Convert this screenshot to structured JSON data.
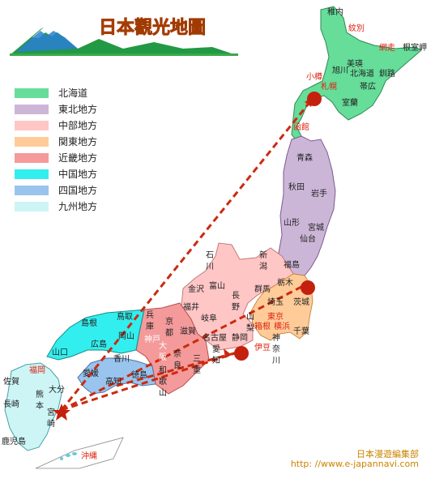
{
  "title": "日本觀光地圖",
  "legend": [
    {
      "label": "北海道",
      "color": "#66dd99"
    },
    {
      "label": "東北地方",
      "color": "#ccb6d8"
    },
    {
      "label": "中部地方",
      "color": "#ffc6c6"
    },
    {
      "label": "関東地方",
      "color": "#ffcc99"
    },
    {
      "label": "近畿地方",
      "color": "#f49a9a"
    },
    {
      "label": "中国地方",
      "color": "#33eeee"
    },
    {
      "label": "四国地方",
      "color": "#99c4ee"
    },
    {
      "label": "九州地方",
      "color": "#cdf5f5"
    }
  ],
  "labels": {
    "wakkanai": "稚内",
    "abashiri": "紋別",
    "shiretoko": "網走",
    "nemuro": "根室岬",
    "asahikawa": "旭川",
    "bihoro": "美瑛",
    "hokkaido": "北海道",
    "kushiro": "釧路",
    "otaru": "小樽",
    "sapporo": "札幌",
    "obihiro": "帯広",
    "muroran": "室蘭",
    "hakodate": "函館",
    "aomori": "青森",
    "akita": "秋田",
    "iwate": "岩手",
    "yamagata": "山形",
    "miyagi": "宮城",
    "sendai": "仙台",
    "niigata1": "新",
    "niigata2": "潟",
    "fukushima": "福島",
    "ishikawa1": "石",
    "ishikawa2": "川",
    "kanazawa": "金沢",
    "toyama": "富山",
    "fukui": "福井",
    "nagano1": "長",
    "nagano2": "野",
    "gunma": "群馬",
    "tochigi": "栃木",
    "ibaraki": "茨城",
    "saitama": "埼玉",
    "gifu": "岐阜",
    "yamanashi1": "山",
    "yamanashi2": "梨",
    "tokyo": "東京",
    "hakone": "箱根",
    "yokohama": "横浜",
    "chiba": "千葉",
    "kanagawa1": "神",
    "kanagawa2": "奈",
    "kanagawa3": "川",
    "shizuoka": "静岡",
    "izu": "伊豆",
    "nagoya": "名古屋",
    "aichi1": "愛",
    "aichi2": "知",
    "mie1": "三",
    "mie2": "重",
    "shiga": "滋賀",
    "kyoto1": "京",
    "kyoto2": "都",
    "hyogo1": "兵",
    "hyogo2": "庫",
    "kobe": "神戸",
    "osaka1": "大",
    "osaka2": "阪",
    "nara1": "奈",
    "nara2": "良",
    "wakayama1": "和",
    "wakayama2": "歌",
    "wakayama3": "山",
    "tottori": "鳥取",
    "shimane": "島根",
    "okayama": "岡山",
    "hiroshima": "広島",
    "yamaguchi": "山口",
    "kagawa": "香川",
    "ehime": "愛媛",
    "kochi": "高知",
    "tokushima": "徳島",
    "fukuoka": "福岡",
    "saga": "佐賀",
    "oita": "大分",
    "nagasaki": "長崎",
    "kumamoto1": "熊",
    "kumamoto2": "本",
    "miyazaki1": "宮",
    "miyazaki2": "崎",
    "kagoshima": "鹿児島",
    "okinawa": "沖縄"
  },
  "credit": {
    "name": "日本漫遊編集部",
    "url": "http: //www.e-japannavi.com"
  }
}
